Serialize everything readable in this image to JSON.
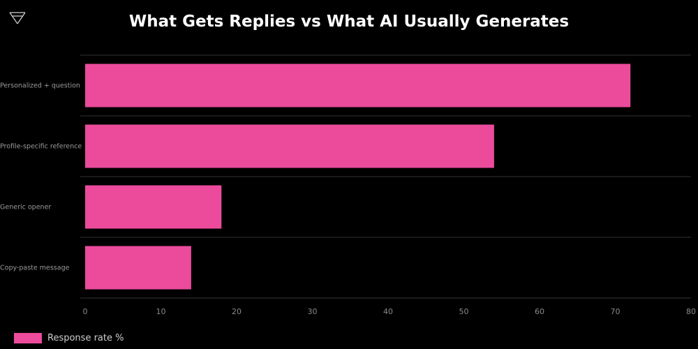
{
  "logo": {
    "icon": "triangle-logo-icon"
  },
  "chart_data": {
    "type": "bar",
    "orientation": "horizontal",
    "title": "What Gets Replies vs What AI Usually Generates",
    "xlabel": "",
    "ylabel": "",
    "categories": [
      "Personalized + question",
      "Profile-specific reference",
      "Generic opener",
      "Copy-paste message"
    ],
    "series": [
      {
        "name": "Response rate %",
        "values": [
          72,
          54,
          18,
          14
        ],
        "color": "#ec4b9c"
      }
    ],
    "xlim": [
      0,
      80
    ],
    "xticks": [
      0,
      10,
      20,
      30,
      40,
      50,
      60,
      70,
      80
    ],
    "grid": "horizontal separators",
    "legend": "bottom-left"
  },
  "colors": {
    "background": "#000000",
    "bar": "#ec4b9c",
    "gridline": "#333333",
    "tick_text": "#8a8a8a"
  }
}
